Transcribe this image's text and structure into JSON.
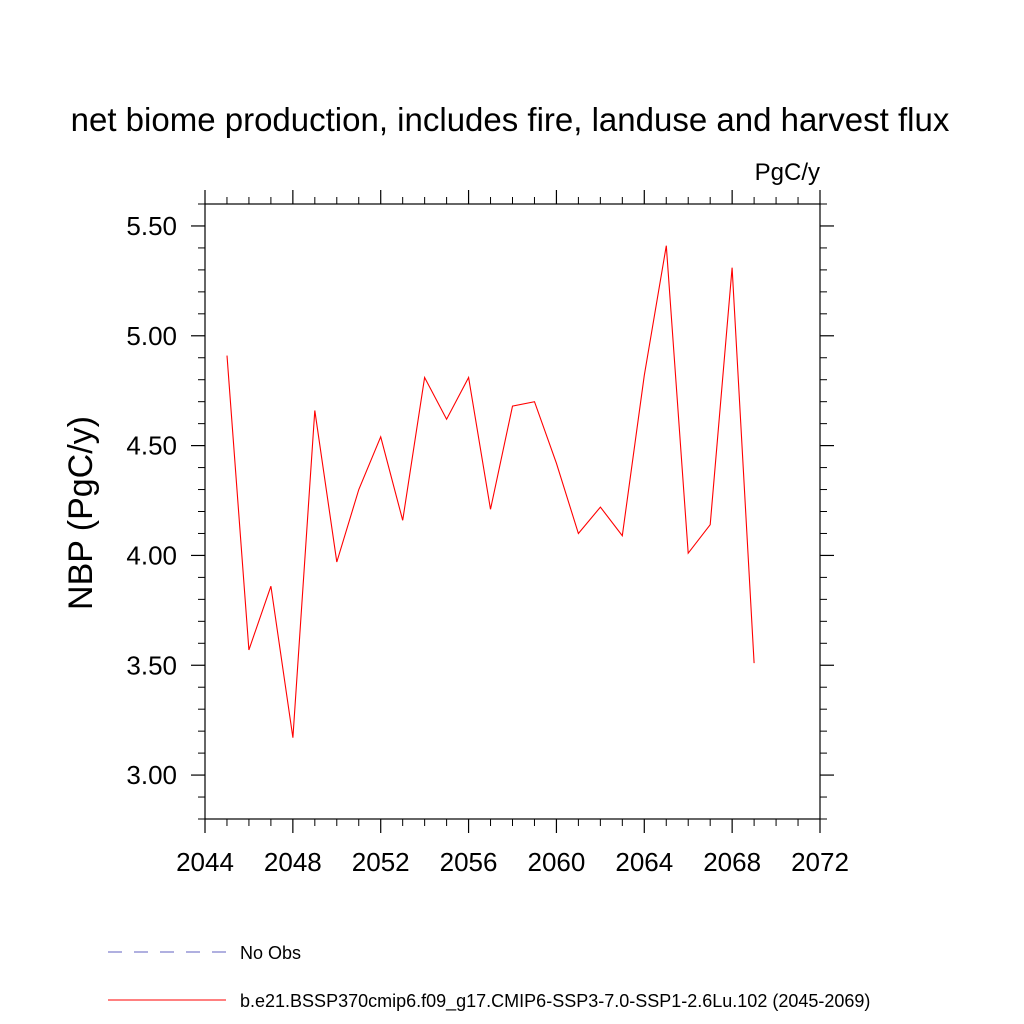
{
  "chart_data": {
    "type": "line",
    "title": "net biome production, includes fire, landuse and harvest flux",
    "units": "PgC/y",
    "ylabel": "NBP  (PgC/y)",
    "xlabel": "",
    "xlim": [
      2044,
      2072
    ],
    "ylim": [
      2.8,
      5.6
    ],
    "x_ticks": [
      2044,
      2048,
      2052,
      2056,
      2060,
      2064,
      2068,
      2072
    ],
    "x_tick_labels": [
      "2044",
      "2048",
      "2052",
      "2056",
      "2060",
      "2064",
      "2068",
      "2072"
    ],
    "y_ticks": [
      3.0,
      3.5,
      4.0,
      4.5,
      5.0,
      5.5
    ],
    "y_tick_labels": [
      "3.00",
      "3.50",
      "4.00",
      "4.50",
      "5.00",
      "5.50"
    ],
    "grid": false,
    "legend_position": "bottom",
    "series": [
      {
        "name": "b.e21.BSSP370cmip6.f09_g17.CMIP6-SSP3-7.0-SSP1-2.6Lu.102 (2045-2069)",
        "color": "#ff0000",
        "x": [
          2045,
          2046,
          2047,
          2048,
          2049,
          2050,
          2051,
          2052,
          2053,
          2054,
          2055,
          2056,
          2057,
          2058,
          2059,
          2060,
          2061,
          2062,
          2063,
          2064,
          2065,
          2066,
          2067,
          2068,
          2069
        ],
        "values": [
          4.91,
          3.57,
          3.86,
          3.17,
          4.66,
          3.97,
          4.3,
          4.54,
          4.16,
          4.81,
          4.62,
          4.81,
          4.21,
          4.68,
          4.7,
          4.42,
          4.1,
          4.22,
          4.09,
          4.82,
          5.41,
          4.01,
          4.14,
          5.31,
          3.51
        ]
      }
    ],
    "legend": [
      {
        "label": "No Obs",
        "color": "#6060c0",
        "dashed": true
      },
      {
        "label": "b.e21.BSSP370cmip6.f09_g17.CMIP6-SSP3-7.0-SSP1-2.6Lu.102 (2045-2069)",
        "color": "#ff0000",
        "dashed": false
      }
    ]
  }
}
